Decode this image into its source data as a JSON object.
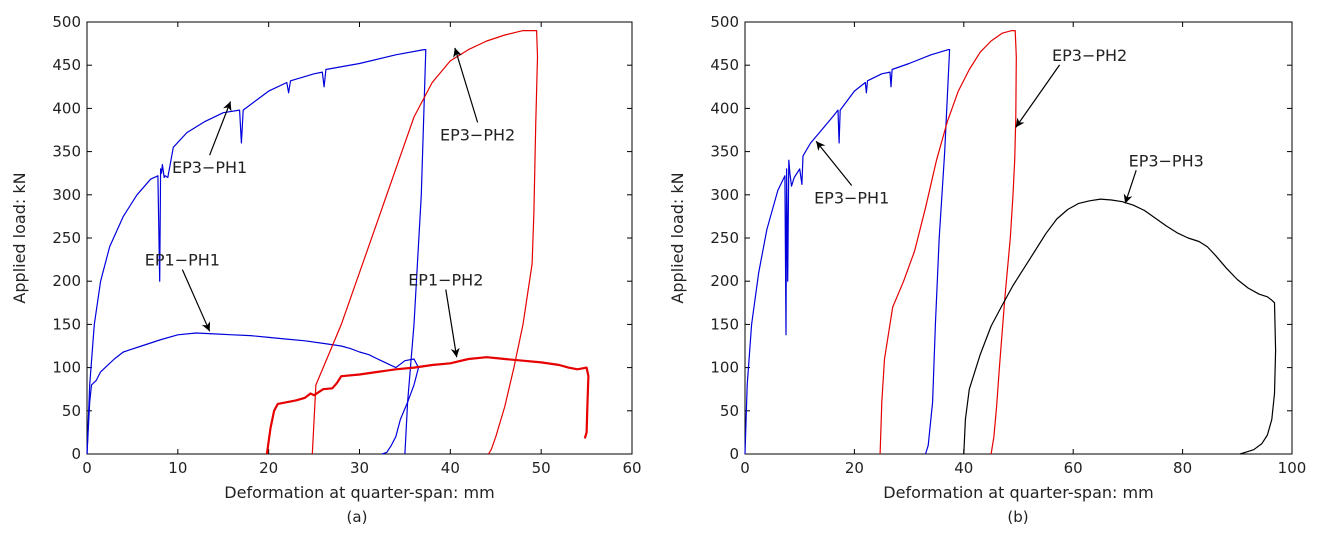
{
  "chart_data": [
    {
      "panel_label": "(a)",
      "type": "line",
      "xlabel": "Deformation at quarter-span: mm",
      "ylabel": "Applied load: kN",
      "xlim": [
        0,
        60
      ],
      "ylim": [
        0,
        500
      ],
      "xticks": [
        0,
        10,
        20,
        30,
        40,
        50,
        60
      ],
      "yticks": [
        0,
        50,
        100,
        150,
        200,
        250,
        300,
        350,
        400,
        450,
        500
      ],
      "grid": false,
      "colors": {
        "EP3-PH1": "#0000dd",
        "EP1-PH1": "#0000dd",
        "EP3-PH2": "#e60000",
        "EP1-PH2": "#e60000"
      },
      "series": [
        {
          "name": "EP3-PH1",
          "color": "#0000dd",
          "x": [
            0,
            0.3,
            0.8,
            1.5,
            2.5,
            4,
            5.5,
            7,
            7.8,
            8.0,
            8.1,
            8.2,
            8.3,
            8.5,
            8.6,
            8.9,
            9.5,
            11,
            13,
            15,
            16.8,
            17.0,
            17.2,
            20,
            22,
            22.2,
            22.4,
            25,
            25.9,
            26.1,
            26.3,
            30,
            34,
            37.1,
            37.3,
            36.8,
            36.0,
            35.3,
            35.0
          ],
          "y": [
            0,
            80,
            150,
            200,
            240,
            275,
            300,
            318,
            322,
            200,
            330,
            325,
            335,
            320,
            322,
            320,
            355,
            372,
            385,
            395,
            398,
            360,
            398,
            420,
            430,
            418,
            432,
            440,
            442,
            425,
            445,
            452,
            462,
            468,
            468,
            300,
            150,
            60,
            0
          ]
        },
        {
          "name": "EP1-PH1",
          "color": "#0000dd",
          "x": [
            0,
            0.3,
            0.5,
            1.0,
            1.5,
            2,
            3,
            4,
            6,
            8,
            10,
            12,
            14,
            16,
            18,
            20,
            22,
            24,
            26,
            28,
            29,
            30,
            31,
            32,
            33,
            34,
            35,
            36,
            36.5,
            36.0,
            35.3,
            34.5,
            34.0,
            33.5,
            33.0,
            32.5
          ],
          "y": [
            0,
            60,
            80,
            85,
            95,
            100,
            110,
            118,
            125,
            132,
            138,
            140,
            139,
            138,
            137,
            135,
            133,
            131,
            128,
            125,
            122,
            118,
            115,
            110,
            105,
            100,
            108,
            110,
            100,
            80,
            60,
            40,
            20,
            10,
            2,
            0
          ]
        },
        {
          "name": "EP3-PH2",
          "color": "#e60000",
          "x": [
            24.8,
            25.2,
            26,
            28,
            30,
            32,
            34,
            36,
            38,
            40,
            42,
            44,
            46,
            48,
            49.5,
            49.6,
            49.4,
            49.2,
            49.0,
            48.0,
            47.0,
            46.0,
            45.0,
            44.5,
            44.2
          ],
          "y": [
            0,
            80,
            100,
            150,
            210,
            270,
            330,
            390,
            430,
            455,
            468,
            478,
            485,
            490,
            490,
            460,
            380,
            280,
            220,
            150,
            100,
            55,
            20,
            5,
            0
          ]
        },
        {
          "name": "EP1-PH2",
          "color": "#e60000",
          "x": [
            19.8,
            20.2,
            20.6,
            21,
            22,
            23,
            24,
            24.6,
            25,
            26,
            27,
            27.5,
            28,
            30,
            32,
            34,
            36,
            38,
            40,
            42,
            44,
            46,
            48,
            50,
            52,
            53,
            54,
            55,
            55.2,
            55.1,
            55.0,
            54.8
          ],
          "y": [
            0,
            30,
            50,
            58,
            60,
            62,
            65,
            70,
            68,
            75,
            76,
            82,
            90,
            92,
            95,
            98,
            100,
            103,
            105,
            110,
            112,
            110,
            108,
            106,
            103,
            100,
            98,
            100,
            90,
            60,
            25,
            18
          ]
        }
      ],
      "annotations": [
        {
          "text": "EP3−PH1",
          "label_x": 13.5,
          "label_y": 325,
          "target_x": 15.8,
          "target_y": 408
        },
        {
          "text": "EP3−PH2",
          "label_x": 43,
          "label_y": 363,
          "target_x": 40.5,
          "target_y": 470
        },
        {
          "text": "EP1−PH1",
          "label_x": 10.5,
          "label_y": 218,
          "target_x": 13.5,
          "target_y": 142
        },
        {
          "text": "EP1−PH2",
          "label_x": 39.5,
          "label_y": 195,
          "target_x": 40.7,
          "target_y": 112
        }
      ]
    },
    {
      "panel_label": "(b)",
      "type": "line",
      "xlabel": "Deformation at quarter-span: mm",
      "ylabel": "Applied load: kN",
      "xlim": [
        0,
        100
      ],
      "ylim": [
        0,
        500
      ],
      "xticks": [
        0,
        20,
        40,
        60,
        80,
        100
      ],
      "yticks": [
        0,
        50,
        100,
        150,
        200,
        250,
        300,
        350,
        400,
        450,
        500
      ],
      "grid": false,
      "colors": {
        "EP3-PH1": "#0000dd",
        "EP3-PH2": "#e60000",
        "EP3-PH3": "#000000"
      },
      "series": [
        {
          "name": "EP3-PH1",
          "color": "#0000dd",
          "x": [
            0,
            0.4,
            1.2,
            2.5,
            4,
            6,
            7.3,
            7.5,
            7.6,
            7.8,
            8.0,
            8.2,
            8.5,
            9,
            10,
            10.4,
            10.6,
            12,
            14,
            16,
            17.0,
            17.2,
            17.4,
            20,
            22,
            22.2,
            22.4,
            25,
            26.5,
            26.7,
            26.9,
            30,
            34,
            37.2,
            37.4,
            36.5,
            35.5,
            34.8,
            34.3,
            33.5,
            33
          ],
          "y": [
            0,
            80,
            150,
            210,
            260,
            305,
            322,
            138,
            330,
            200,
            340,
            325,
            310,
            320,
            330,
            312,
            345,
            360,
            375,
            390,
            398,
            360,
            398,
            420,
            430,
            418,
            432,
            440,
            442,
            425,
            445,
            452,
            462,
            468,
            468,
            350,
            250,
            150,
            60,
            10,
            0
          ]
        },
        {
          "name": "EP3-PH2",
          "color": "#e60000",
          "x": [
            24.7,
            25.0,
            25.5,
            27,
            29,
            31,
            33,
            35,
            37,
            39,
            41,
            43,
            45,
            47,
            48.8,
            49.4,
            49.6,
            49.5,
            49.3,
            49.0,
            48.5,
            47.5,
            46.5,
            46.0,
            45.5,
            45.0
          ],
          "y": [
            0,
            60,
            110,
            170,
            200,
            235,
            285,
            340,
            385,
            420,
            445,
            465,
            478,
            487,
            490,
            490,
            460,
            390,
            340,
            300,
            250,
            180,
            100,
            55,
            20,
            0
          ]
        },
        {
          "name": "EP3-PH3",
          "color": "#000000",
          "x": [
            40.0,
            40.3,
            41,
            43,
            45,
            47,
            49,
            51,
            53,
            55,
            57,
            59,
            61,
            63,
            65,
            67,
            69,
            71,
            73,
            75,
            77,
            79,
            81,
            83,
            84.5,
            86,
            88,
            90,
            92,
            94,
            95.5,
            96.3,
            96.8,
            97.0,
            96.8,
            96.3,
            95.5,
            94.5,
            93,
            91.5,
            90.5
          ],
          "y": [
            0,
            40,
            75,
            115,
            148,
            172,
            195,
            215,
            235,
            255,
            272,
            283,
            290,
            293,
            295,
            294,
            292,
            288,
            282,
            273,
            264,
            256,
            250,
            246,
            240,
            230,
            215,
            202,
            192,
            185,
            182,
            178,
            175,
            120,
            70,
            40,
            22,
            12,
            5,
            2,
            0
          ]
        }
      ],
      "annotations": [
        {
          "text": "EP3−PH1",
          "label_x": 19.5,
          "label_y": 290,
          "target_x": 13,
          "target_y": 362
        },
        {
          "text": "EP3−PH2",
          "label_x": 63,
          "label_y": 455,
          "target_x": 49.5,
          "target_y": 378
        },
        {
          "text": "EP3−PH3",
          "label_x": 77,
          "label_y": 333,
          "target_x": 69.5,
          "target_y": 290
        }
      ]
    }
  ]
}
